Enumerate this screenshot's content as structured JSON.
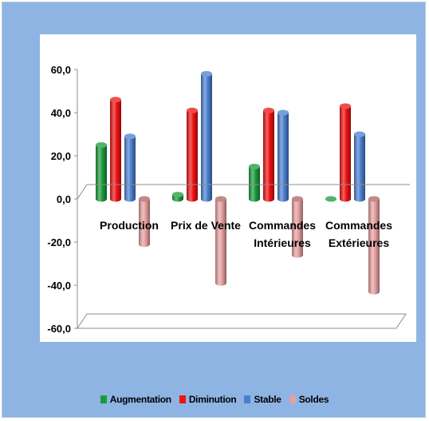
{
  "colors": {
    "frame_bg": "#8eb4e3",
    "Augmentation": "#1a9a3c",
    "Diminution": "#ee1111",
    "Stable": "#4a7fd0",
    "Soldes": "#e6a0a0"
  },
  "chart_data": {
    "type": "bar",
    "style": "3d-cylinder",
    "categories": [
      "Production",
      "Prix de Vente",
      "Commandes Intérieures",
      "Commandes Extérieures"
    ],
    "category_lines": [
      [
        "Production"
      ],
      [
        "Prix de Vente"
      ],
      [
        "Commandes",
        "Intérieures"
      ],
      [
        "Commandes",
        "Extérieures"
      ]
    ],
    "series": [
      {
        "name": "Augmentation",
        "values": [
          25.0,
          2.0,
          15.0,
          0.0
        ]
      },
      {
        "name": "Diminution",
        "values": [
          46.0,
          41.0,
          41.0,
          43.0
        ]
      },
      {
        "name": "Stable",
        "values": [
          29.0,
          58.0,
          40.0,
          30.0
        ]
      },
      {
        "name": "Soldes",
        "values": [
          -21.0,
          -39.0,
          -26.0,
          -43.0
        ]
      }
    ],
    "ylim": [
      -60,
      60
    ],
    "yticks": [
      60,
      40,
      20,
      0,
      -20,
      -40,
      -60
    ],
    "ytick_labels": [
      "60,0",
      "40,0",
      "20,0",
      "0,0",
      "-20,0",
      "-40,0",
      "-60,0"
    ],
    "legend": [
      "Augmentation",
      "Diminution",
      "Stable",
      "Soldes"
    ],
    "legend_position": "bottom",
    "grid": false
  }
}
